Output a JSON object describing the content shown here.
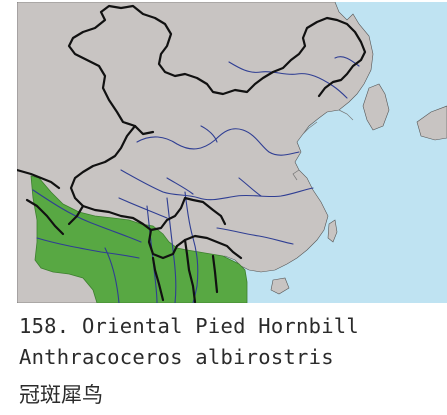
{
  "figure": {
    "title": "158. Oriental Pied Hornbill",
    "scientific_name": "Anthracoceros albirostris",
    "chinese_name": "冠斑犀鸟"
  },
  "legend": {
    "range_color": "#58a843",
    "land_color": "#c8c4c2",
    "sea_color": "#bfe3f2",
    "river_color": "#2f3e93",
    "border_color": "#111111"
  }
}
